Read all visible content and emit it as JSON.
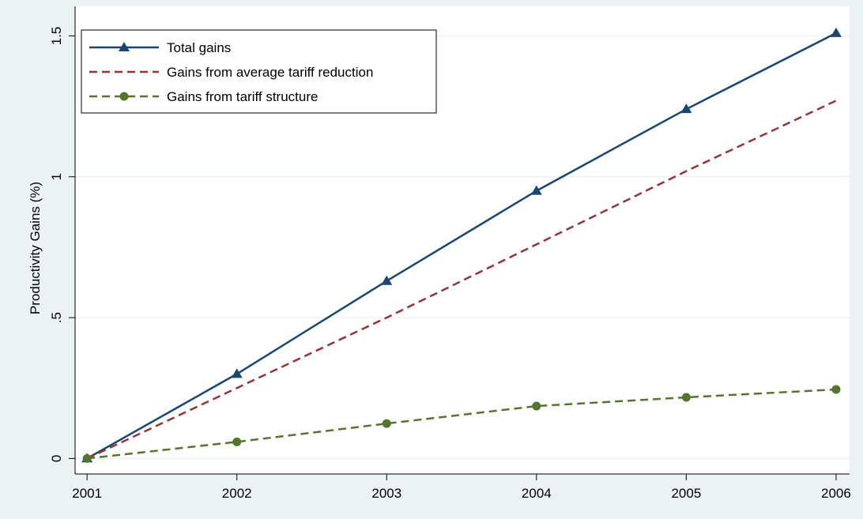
{
  "chart_data": {
    "type": "line",
    "y_label": "Productivity Gains (%)",
    "x": [
      2001,
      2002,
      2003,
      2004,
      2005,
      2006
    ],
    "xlim": [
      2000.92,
      2006.09
    ],
    "xticks": [
      2001,
      2002,
      2003,
      2004,
      2005,
      2006
    ],
    "ylim": [
      -0.055,
      1.605
    ],
    "yticks": [
      0,
      {
        "value": 0.5,
        "label": ".5"
      },
      1,
      1.5
    ],
    "grid": true,
    "legend": "top-left",
    "series": [
      {
        "name": "Total gains",
        "color": "#1a476f",
        "dash": false,
        "marker": "triangle",
        "values": [
          0,
          0.3,
          0.63,
          0.95,
          1.24,
          1.51
        ]
      },
      {
        "name": "Gains from average tariff reduction",
        "color": "#90353b",
        "dash": true,
        "marker": "none",
        "values": [
          0,
          0.25,
          0.5,
          0.76,
          1.02,
          1.27
        ]
      },
      {
        "name": "Gains from tariff structure",
        "color": "#55752f",
        "dash": true,
        "marker": "circle",
        "values": [
          0,
          0.059,
          0.124,
          0.186,
          0.217,
          0.245
        ]
      }
    ]
  }
}
